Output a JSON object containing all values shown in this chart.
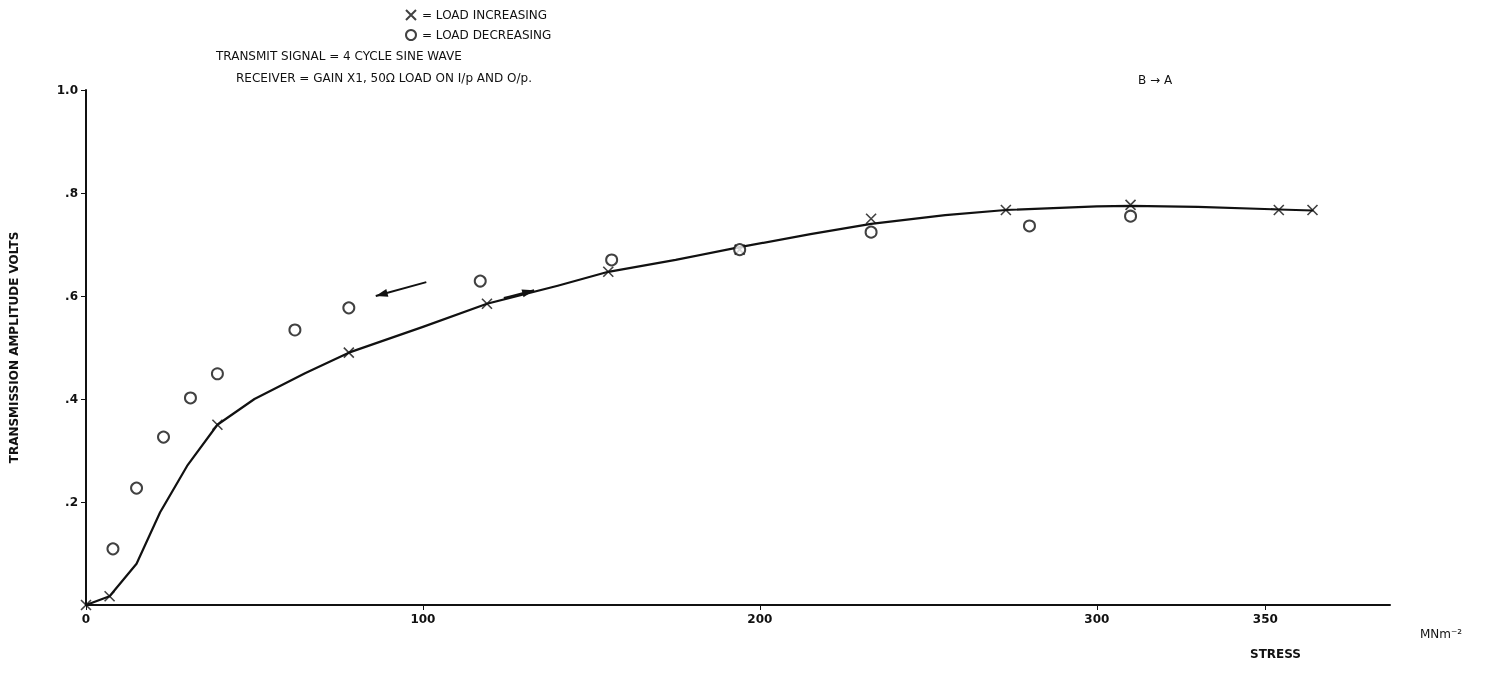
{
  "chart_data": {
    "type": "scatter",
    "xlabel": "STRESS",
    "ylabel": "TRANSMISSION AMPLITUDE VOLTS",
    "annotations": [
      "TRANSMIT SIGNAL = 4 CYCLE SINE WAVE",
      "RECEIVER = GAIN X1, 50Ω LOAD ON I/p AND O/p.",
      "B → A",
      "MNm⁻²"
    ],
    "xlim": [
      0,
      387
    ],
    "xticks": [
      0,
      100,
      200,
      300,
      350
    ],
    "ylim": [
      0,
      1
    ],
    "yticks": [
      {
        "value": 0.2,
        "label": ".2"
      },
      {
        "value": 0.4,
        "label": ".4"
      },
      {
        "value": 0.6,
        "label": ".6"
      },
      {
        "value": 0.8,
        "label": ".8"
      },
      {
        "value": 1,
        "label": "1.0"
      }
    ],
    "grid": false,
    "legend": "top",
    "series": [
      {
        "name": "= LOAD INCREASING",
        "marker": "cross",
        "color": "#111111",
        "x": [
          0,
          7,
          39,
          78,
          119,
          155,
          194,
          233,
          273,
          310,
          354,
          364
        ],
        "values": [
          0,
          0.017,
          0.35,
          0.49,
          0.585,
          0.647,
          0.69,
          0.75,
          0.767,
          0.777,
          0.767,
          0.767
        ]
      },
      {
        "name": "= LOAD DECREASING",
        "marker": "circle",
        "color": "#111111",
        "x": [
          8,
          15,
          23,
          31,
          39,
          62,
          78,
          117,
          156,
          194,
          233,
          280,
          310
        ],
        "values": [
          0.109,
          0.227,
          0.326,
          0.402,
          0.449,
          0.534,
          0.577,
          0.629,
          0.67,
          0.69,
          0.724,
          0.736,
          0.755
        ]
      },
      {
        "type": "line",
        "marker": "none",
        "line_style": "solid",
        "color": "#111111",
        "x": [
          0,
          7,
          15,
          22,
          30,
          39,
          50,
          65,
          78,
          100,
          119,
          140,
          155,
          175,
          194,
          215,
          233,
          255,
          273,
          300,
          310,
          330,
          354,
          364
        ],
        "values": [
          0,
          0.017,
          0.08,
          0.18,
          0.27,
          0.35,
          0.4,
          0.45,
          0.49,
          0.54,
          0.585,
          0.62,
          0.647,
          0.67,
          0.695,
          0.72,
          0.74,
          0.757,
          0.767,
          0.774,
          0.775,
          0.773,
          0.768,
          0.766
        ]
      }
    ]
  }
}
